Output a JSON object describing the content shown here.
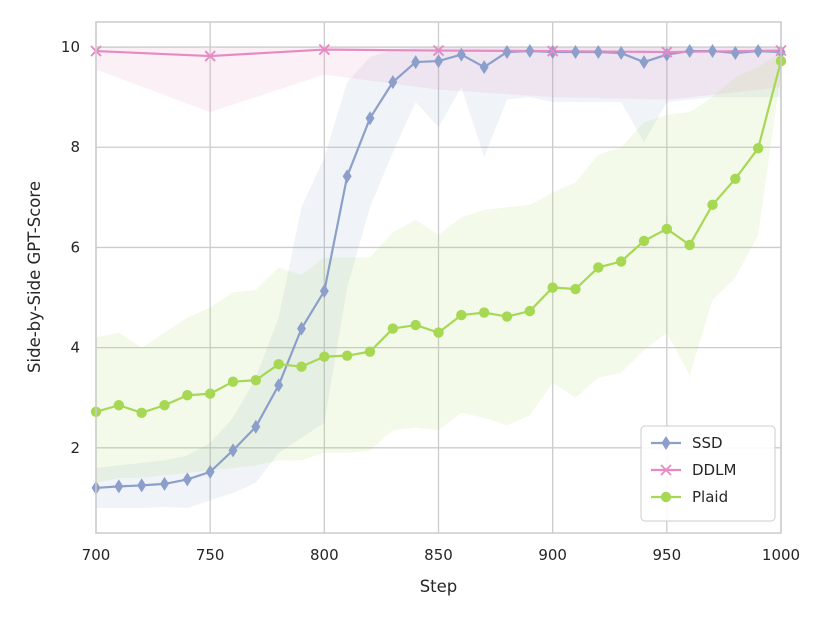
{
  "chart_data": {
    "type": "line",
    "xlabel": "Step",
    "ylabel": "Side-by-Side GPT-Score",
    "xlim": [
      700,
      1000
    ],
    "ylim": [
      0.3,
      10.5
    ],
    "xticks": [
      700,
      750,
      800,
      850,
      900,
      950,
      1000
    ],
    "yticks": [
      2,
      4,
      6,
      8,
      10
    ],
    "grid": true,
    "legend_position": "lower-right",
    "series": [
      {
        "name": "SSD",
        "color": "#8c9fcb",
        "marker": "diamond",
        "x": [
          700,
          710,
          720,
          730,
          740,
          750,
          760,
          770,
          780,
          790,
          800,
          810,
          820,
          830,
          840,
          850,
          860,
          870,
          880,
          890,
          900,
          910,
          920,
          930,
          940,
          950,
          960,
          970,
          980,
          990,
          1000
        ],
        "y": [
          1.2,
          1.23,
          1.25,
          1.28,
          1.37,
          1.52,
          1.95,
          2.42,
          3.25,
          4.38,
          5.13,
          7.42,
          8.58,
          9.3,
          9.7,
          9.72,
          9.85,
          9.6,
          9.9,
          9.92,
          9.9,
          9.9,
          9.9,
          9.88,
          9.7,
          9.85,
          9.92,
          9.92,
          9.88,
          9.92,
          9.9
        ],
        "band_upper": [
          1.6,
          1.65,
          1.7,
          1.75,
          1.85,
          2.1,
          2.6,
          3.4,
          4.6,
          6.8,
          7.8,
          9.3,
          9.8,
          9.95,
          9.98,
          9.98,
          9.98,
          9.98,
          9.98,
          9.98,
          9.98,
          9.98,
          9.98,
          9.98,
          9.98,
          9.98,
          9.98,
          9.98,
          9.98,
          9.98,
          9.98
        ],
        "band_lower": [
          0.8,
          0.8,
          0.8,
          0.82,
          0.8,
          0.95,
          1.1,
          1.3,
          1.9,
          2.2,
          2.5,
          5.2,
          6.8,
          7.9,
          8.9,
          8.4,
          9.2,
          7.8,
          8.95,
          9.0,
          8.9,
          8.9,
          8.9,
          8.9,
          8.1,
          8.9,
          8.95,
          9.0,
          9.0,
          9.0,
          9.0
        ]
      },
      {
        "name": "DDLM",
        "color": "#e78ac3",
        "marker": "x",
        "x": [
          700,
          750,
          800,
          850,
          900,
          950,
          1000
        ],
        "y": [
          9.92,
          9.82,
          9.95,
          9.93,
          9.92,
          9.9,
          9.93
        ],
        "band_upper": [
          10.0,
          9.98,
          10.0,
          10.0,
          10.0,
          10.0,
          10.0
        ],
        "band_lower": [
          9.55,
          8.7,
          9.45,
          9.15,
          9.0,
          8.95,
          9.2
        ]
      },
      {
        "name": "Plaid",
        "color": "#a6d854",
        "marker": "circle",
        "x": [
          700,
          710,
          720,
          730,
          740,
          750,
          760,
          770,
          780,
          790,
          800,
          810,
          820,
          830,
          840,
          850,
          860,
          870,
          880,
          890,
          900,
          910,
          920,
          930,
          940,
          950,
          960,
          970,
          980,
          990,
          1000
        ],
        "y": [
          2.72,
          2.85,
          2.7,
          2.85,
          3.05,
          3.08,
          3.32,
          3.35,
          3.67,
          3.62,
          3.82,
          3.84,
          3.92,
          4.38,
          4.45,
          4.3,
          4.65,
          4.7,
          4.62,
          4.73,
          5.2,
          5.17,
          5.6,
          5.72,
          6.13,
          6.37,
          6.05,
          6.85,
          7.37,
          7.98,
          9.72
        ],
        "band_upper": [
          4.2,
          4.3,
          4.0,
          4.3,
          4.6,
          4.8,
          5.1,
          5.15,
          5.6,
          5.45,
          5.8,
          5.8,
          5.8,
          6.3,
          6.55,
          6.25,
          6.6,
          6.75,
          6.8,
          6.85,
          7.1,
          7.3,
          7.85,
          8.0,
          8.5,
          8.65,
          8.7,
          9.0,
          9.4,
          9.6,
          9.9
        ],
        "band_lower": [
          1.3,
          1.4,
          1.4,
          1.45,
          1.5,
          1.55,
          1.6,
          1.65,
          1.75,
          1.75,
          1.9,
          1.9,
          1.95,
          2.35,
          2.4,
          2.35,
          2.7,
          2.6,
          2.45,
          2.65,
          3.3,
          3.0,
          3.4,
          3.5,
          3.95,
          4.3,
          3.45,
          4.95,
          5.4,
          6.25,
          9.5
        ]
      }
    ]
  }
}
